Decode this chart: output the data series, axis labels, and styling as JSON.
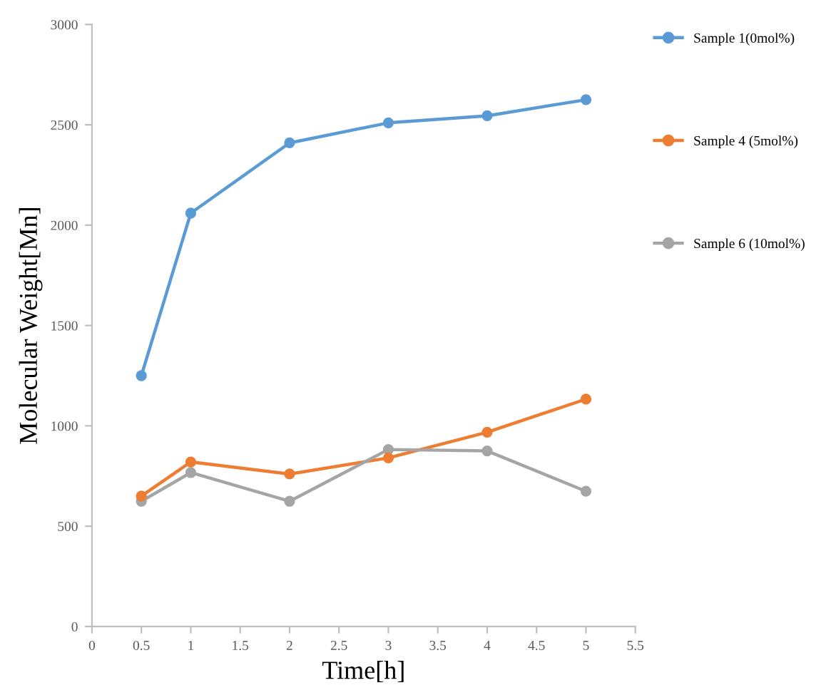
{
  "chart_data": {
    "type": "line",
    "xlabel": "Time[h]",
    "ylabel": "Molecular Weight[Mn]",
    "x": [
      0.5,
      1,
      2,
      3,
      4,
      5
    ],
    "series": [
      {
        "name": "Sample 1(0mol%)",
        "color": "#5b9bd5",
        "values": [
          1250,
          2060,
          2410,
          2510,
          2545,
          2625
        ]
      },
      {
        "name": "Sample 4 (5mol%)",
        "color": "#ed7d31",
        "values": [
          650,
          820,
          760,
          840,
          968,
          1133
        ]
      },
      {
        "name": "Sample 6 (10mol%)",
        "color": "#a5a5a5",
        "values": [
          624,
          767,
          624,
          882,
          875,
          674
        ]
      }
    ],
    "xlim": [
      0,
      5.5
    ],
    "xticks": [
      0,
      0.5,
      1,
      1.5,
      2,
      2.5,
      3,
      3.5,
      4,
      4.5,
      5,
      5.5
    ],
    "ylim": [
      0,
      3000
    ],
    "yticks": [
      0,
      500,
      1000,
      1500,
      2000,
      2500,
      3000
    ],
    "grid": false,
    "legend": "right",
    "marker": "circle",
    "line_style": "solid"
  }
}
